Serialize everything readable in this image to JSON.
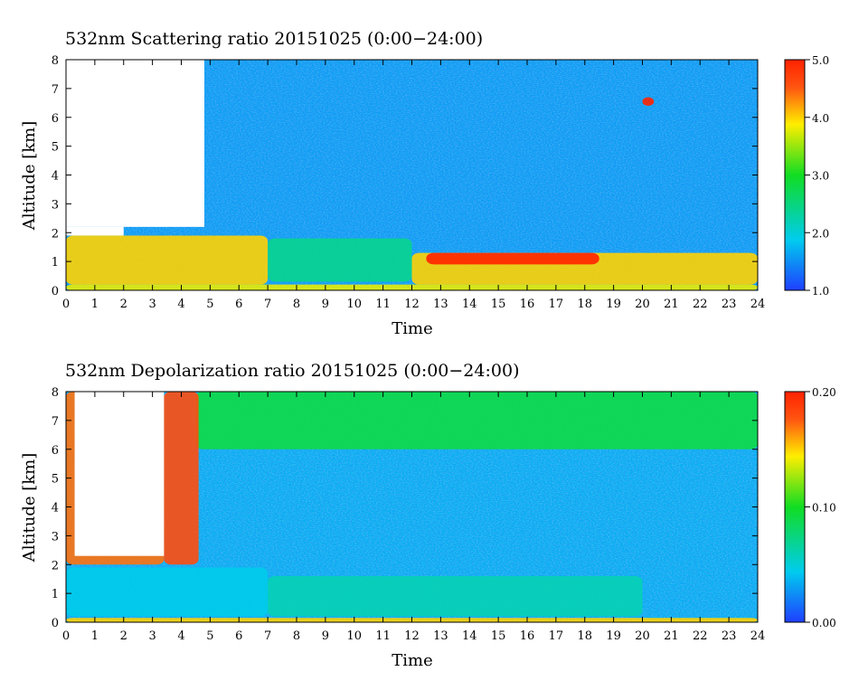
{
  "chart_data": [
    {
      "type": "heatmap",
      "title": "532nm Scattering ratio  20151025 (0:00−24:00)",
      "xlabel": "Time",
      "ylabel": "Altitude [km]",
      "xlim": [
        0,
        24
      ],
      "ylim": [
        0,
        8
      ],
      "x_ticks": [
        "0",
        "1",
        "2",
        "3",
        "4",
        "5",
        "6",
        "7",
        "8",
        "9",
        "10",
        "11",
        "12",
        "13",
        "14",
        "15",
        "16",
        "17",
        "18",
        "19",
        "20",
        "21",
        "22",
        "23",
        "24"
      ],
      "y_ticks": [
        "0",
        "1",
        "2",
        "3",
        "4",
        "5",
        "6",
        "7",
        "8"
      ],
      "colorbar": {
        "min": 1.0,
        "max": 5.0,
        "ticks": [
          "1.0",
          "2.0",
          "3.0",
          "4.0",
          "5.0"
        ],
        "tick_values": [
          1.0,
          2.0,
          3.0,
          4.0,
          5.0
        ]
      },
      "colormap": [
        "#1f3fff",
        "#00ccee",
        "#11dd22",
        "#ffee00",
        "#ff5511",
        "#ff2200"
      ],
      "background_value": 1.6,
      "no_data_regions": [
        {
          "x": [
            0,
            4.8
          ],
          "y": [
            2.2,
            8.0
          ]
        },
        {
          "x": [
            0,
            2.0
          ],
          "y": [
            1.9,
            2.2
          ]
        }
      ],
      "features": [
        {
          "description": "aerosol layer",
          "x": [
            0,
            7.0
          ],
          "y": [
            0.2,
            1.9
          ],
          "value": 4.0
        },
        {
          "description": "aerosol layer",
          "x": [
            7.0,
            12.0
          ],
          "y": [
            0.3,
            1.8
          ],
          "value": 2.4
        },
        {
          "description": "aerosol layer",
          "x": [
            12.0,
            24.0
          ],
          "y": [
            0.2,
            1.3
          ],
          "value": 4.0
        },
        {
          "description": "saturated cores",
          "x": [
            12.5,
            18.5
          ],
          "y": [
            0.9,
            1.3
          ],
          "value": 5.0
        },
        {
          "description": "small cloud",
          "x": [
            20.0,
            20.4
          ],
          "y": [
            6.4,
            6.7
          ],
          "value": 5.0
        },
        {
          "description": "near-surface layer",
          "x": [
            0,
            24.0
          ],
          "y": [
            0.0,
            0.2
          ],
          "value": 3.8
        }
      ]
    },
    {
      "type": "heatmap",
      "title": "532nm Depolarization ratio  20151025 (0:00−24:00)",
      "xlabel": "Time",
      "ylabel": "Altitude [km]",
      "xlim": [
        0,
        24
      ],
      "ylim": [
        0,
        8
      ],
      "x_ticks": [
        "0",
        "1",
        "2",
        "3",
        "4",
        "5",
        "6",
        "7",
        "8",
        "9",
        "10",
        "11",
        "12",
        "13",
        "14",
        "15",
        "16",
        "17",
        "18",
        "19",
        "20",
        "21",
        "22",
        "23",
        "24"
      ],
      "y_ticks": [
        "0",
        "1",
        "2",
        "3",
        "4",
        "5",
        "6",
        "7",
        "8"
      ],
      "colorbar": {
        "min": 0.0,
        "max": 0.2,
        "ticks": [
          "0.00",
          "0.10",
          "0.20"
        ],
        "tick_values": [
          0.0,
          0.1,
          0.2
        ]
      },
      "colormap": [
        "#1f3fff",
        "#00ccee",
        "#11dd22",
        "#ffee00",
        "#ff5511",
        "#ff2200"
      ],
      "background_value": 0.035,
      "no_data_regions": [
        {
          "x": [
            0.3,
            3.4
          ],
          "y": [
            2.3,
            8.0
          ]
        }
      ],
      "features": [
        {
          "description": "noisy upper layer",
          "x": [
            4.5,
            24.0
          ],
          "y": [
            6.0,
            8.0
          ],
          "value": 0.09
        },
        {
          "description": "high-depolarization column",
          "x": [
            3.4,
            4.6
          ],
          "y": [
            2.0,
            8.0
          ],
          "value": 0.18
        },
        {
          "description": "edge of no-data region",
          "x": [
            0,
            3.4
          ],
          "y": [
            2.0,
            8.0
          ],
          "value": 0.17
        },
        {
          "description": "boundary layer",
          "x": [
            7.0,
            20.0
          ],
          "y": [
            0.2,
            1.6
          ],
          "value": 0.06
        },
        {
          "description": "boundary layer",
          "x": [
            0,
            7.0
          ],
          "y": [
            0.2,
            1.9
          ],
          "value": 0.045
        },
        {
          "description": "near-surface layer",
          "x": [
            0,
            24.0
          ],
          "y": [
            0.0,
            0.15
          ],
          "value": 0.15
        }
      ]
    }
  ]
}
